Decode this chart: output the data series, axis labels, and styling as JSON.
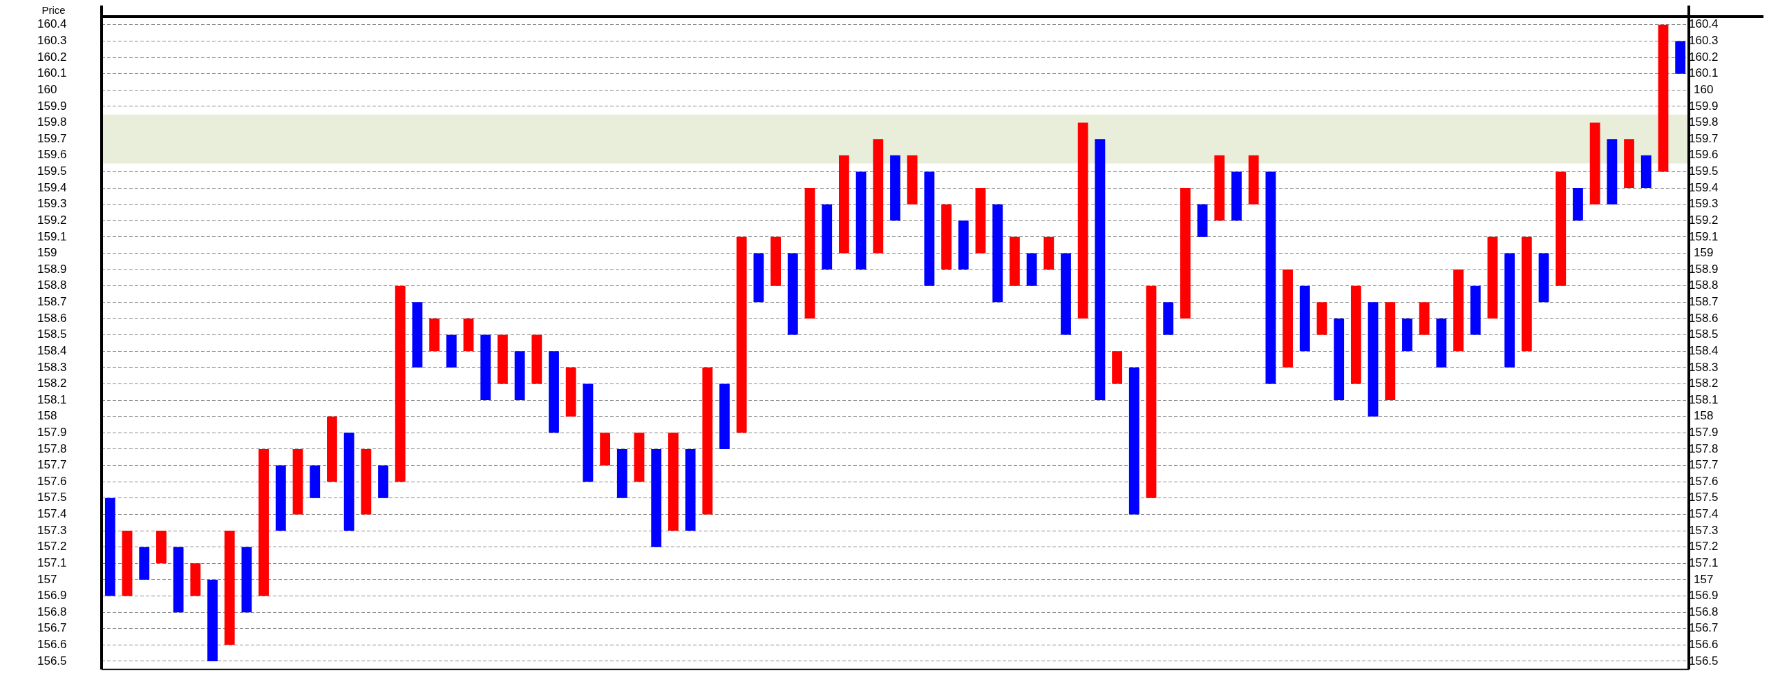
{
  "chart_data": {
    "type": "bar",
    "ylabel": "Price",
    "tick_labels": "y",
    "grid": "y",
    "categories": [
      null,
      null,
      null,
      null,
      null,
      null,
      null,
      null,
      null,
      null,
      null,
      null,
      null,
      null,
      null,
      null,
      null,
      null,
      null,
      null,
      null,
      null,
      null,
      null,
      null,
      null,
      null,
      null,
      null,
      null,
      null,
      null,
      null,
      null,
      null,
      null,
      null,
      null,
      null,
      null,
      null,
      null,
      null,
      null,
      null,
      null,
      null,
      null,
      null,
      null,
      null,
      null,
      null,
      null,
      null,
      null,
      null,
      null,
      null,
      null,
      null,
      null,
      null,
      null,
      null,
      null,
      null,
      null,
      null,
      null,
      null,
      null,
      null,
      null,
      null,
      null,
      null,
      null,
      null,
      null,
      null,
      null,
      null,
      null,
      null,
      null,
      null,
      null,
      null,
      null,
      null,
      null,
      null
    ],
    "ylim": [
      156.45,
      160.45
    ],
    "yticks": [
      156.5,
      156.6,
      156.7,
      156.8,
      156.9,
      157,
      157.1,
      157.2,
      157.3,
      157.4,
      157.5,
      157.6,
      157.7,
      157.8,
      157.9,
      158,
      158.1,
      158.2,
      158.3,
      158.4,
      158.5,
      158.6,
      158.7,
      158.8,
      158.9,
      159,
      159.1,
      159.2,
      159.3,
      159.4,
      159.5,
      159.6,
      159.7,
      159.8,
      159.9,
      160,
      160.1,
      160.2,
      160.3,
      160.4
    ],
    "y2lim": [
      156.45,
      160.45
    ],
    "y2ticks": [
      156.5,
      156.6,
      156.7,
      156.8,
      156.9,
      157,
      157.1,
      157.2,
      157.3,
      157.4,
      157.5,
      157.6,
      157.7,
      157.8,
      157.9,
      158,
      158.1,
      158.2,
      158.3,
      158.4,
      158.5,
      158.6,
      158.7,
      158.8,
      158.9,
      159,
      159.1,
      159.2,
      159.3,
      159.4,
      159.5,
      159.6,
      159.7,
      159.8,
      159.9,
      160,
      160.1,
      160.2,
      160.3,
      160.4
    ],
    "bands": [
      {
        "axis": "y",
        "from": 159.55,
        "to": 159.85,
        "color": "#e9eedb"
      }
    ],
    "series": [
      {
        "color": "#0000ff",
        "base": [
          156.9,
          null,
          157,
          null,
          156.8,
          null,
          156.5,
          null,
          156.8,
          null,
          157.3,
          null,
          157.5,
          null,
          157.3,
          null,
          157.5,
          null,
          158.3,
          null,
          158.3,
          null,
          158.1,
          null,
          158.1,
          null,
          157.9,
          null,
          157.6,
          null,
          157.5,
          null,
          157.2,
          null,
          157.3,
          null,
          157.8,
          null,
          158.7,
          null,
          158.5,
          null,
          158.9,
          null,
          158.9,
          null,
          159.2,
          null,
          158.8,
          null,
          158.9,
          null,
          158.7,
          null,
          158.8,
          null,
          158.5,
          null,
          158.1,
          null,
          157.4,
          null,
          158.5,
          null,
          159.1,
          null,
          159.2,
          null,
          158.2,
          null,
          158.4,
          null,
          158.1,
          null,
          158,
          null,
          158.4,
          null,
          158.3,
          null,
          158.5,
          null,
          158.3,
          null,
          158.7,
          null,
          159.2,
          null,
          159.3,
          null,
          159.4,
          null,
          160.1
        ],
        "values": [
          0.6,
          null,
          0.2,
          null,
          0.4,
          null,
          0.5,
          null,
          0.4,
          null,
          0.4,
          null,
          0.2,
          null,
          0.6,
          null,
          0.2,
          null,
          0.4,
          null,
          0.2,
          null,
          0.4,
          null,
          0.3,
          null,
          0.5,
          null,
          0.6,
          null,
          0.3,
          null,
          0.6,
          null,
          0.5,
          null,
          0.4,
          null,
          0.3,
          null,
          0.5,
          null,
          0.4,
          null,
          0.6,
          null,
          0.4,
          null,
          0.7,
          null,
          0.3,
          null,
          0.6,
          null,
          0.2,
          null,
          0.5,
          null,
          1.6,
          null,
          0.9,
          null,
          0.2,
          null,
          0.2,
          null,
          0.3,
          null,
          1.3,
          null,
          0.4,
          null,
          0.5,
          null,
          0.7,
          null,
          0.2,
          null,
          0.3,
          null,
          0.3,
          null,
          0.7,
          null,
          0.3,
          null,
          0.2,
          null,
          0.4,
          null,
          0.2,
          null,
          0.2
        ]
      },
      {
        "color": "#ff0000",
        "base": [
          null,
          156.9,
          null,
          157.1,
          null,
          156.9,
          null,
          156.6,
          null,
          156.9,
          null,
          157.4,
          null,
          157.6,
          null,
          157.4,
          null,
          157.6,
          null,
          158.4,
          null,
          158.4,
          null,
          158.2,
          null,
          158.2,
          null,
          158,
          null,
          157.7,
          null,
          157.6,
          null,
          157.3,
          null,
          157.4,
          null,
          157.9,
          null,
          158.8,
          null,
          158.6,
          null,
          159,
          null,
          159,
          null,
          159.3,
          null,
          158.9,
          null,
          159,
          null,
          158.8,
          null,
          158.9,
          null,
          158.6,
          null,
          158.2,
          null,
          157.5,
          null,
          158.6,
          null,
          159.2,
          null,
          159.3,
          null,
          158.3,
          null,
          158.5,
          null,
          158.2,
          null,
          158.1,
          null,
          158.5,
          null,
          158.4,
          null,
          158.6,
          null,
          158.4,
          null,
          158.8,
          null,
          159.3,
          null,
          159.4,
          null,
          159.5,
          null
        ],
        "values": [
          null,
          0.4,
          null,
          0.2,
          null,
          0.2,
          null,
          0.7,
          null,
          0.9,
          null,
          0.4,
          null,
          0.4,
          null,
          0.4,
          null,
          1.2,
          null,
          0.2,
          null,
          0.2,
          null,
          0.3,
          null,
          0.3,
          null,
          0.3,
          null,
          0.2,
          null,
          0.3,
          null,
          0.6,
          null,
          0.9,
          null,
          1.2,
          null,
          0.3,
          null,
          0.8,
          null,
          0.6,
          null,
          0.7,
          null,
          0.3,
          null,
          0.4,
          null,
          0.4,
          null,
          0.3,
          null,
          0.2,
          null,
          1.2,
          null,
          0.2,
          null,
          1.3,
          null,
          0.8,
          null,
          0.4,
          null,
          0.3,
          null,
          0.6,
          null,
          0.2,
          null,
          0.6,
          null,
          0.6,
          null,
          0.2,
          null,
          0.5,
          null,
          0.5,
          null,
          0.7,
          null,
          0.7,
          null,
          0.5,
          null,
          0.3,
          null,
          0.9,
          null
        ]
      }
    ]
  }
}
